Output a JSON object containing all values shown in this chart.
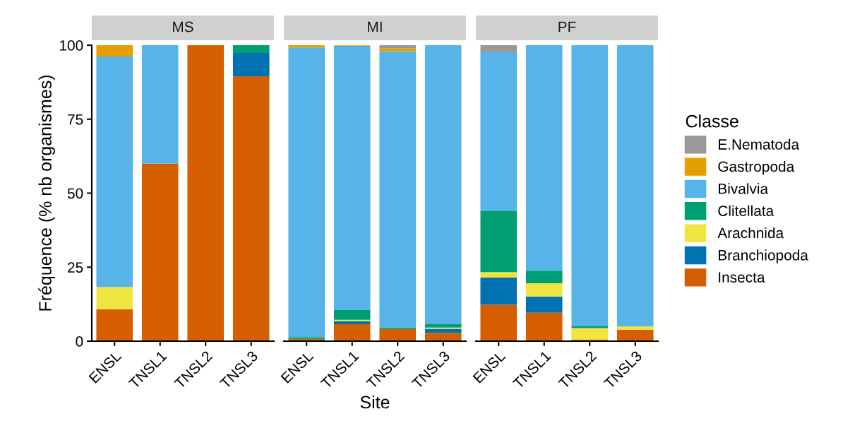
{
  "chart_data": [
    {
      "type": "bar",
      "title": "MS",
      "ylabel": "Fréquence (% nb organismes)",
      "categories": [
        "ENSL",
        "TNSL1",
        "TNSL2",
        "TNSL3"
      ],
      "stacked": true,
      "ylim": [
        0,
        100
      ],
      "yticks": [
        0,
        25,
        50,
        75,
        100
      ],
      "legend": "right",
      "legend_title": "Classe",
      "series": [
        {
          "name": "Insecta",
          "color": "#d55e00",
          "values": [
            10.8,
            60,
            100,
            89.5
          ]
        },
        {
          "name": "Branchiopoda",
          "color": "#0072b2",
          "values": [
            0,
            0,
            0,
            7.9
          ]
        },
        {
          "name": "Arachnida",
          "color": "#f0e442",
          "values": [
            7.5,
            0,
            0,
            0
          ]
        },
        {
          "name": "Clitellata",
          "color": "#009e73",
          "values": [
            0,
            0,
            0,
            2.6
          ]
        },
        {
          "name": "Bivalvia",
          "color": "#56b4e9",
          "values": [
            77.9,
            40,
            0,
            0
          ]
        },
        {
          "name": "Gastropoda",
          "color": "#e69f00",
          "values": [
            3.8,
            0,
            0,
            0
          ]
        },
        {
          "name": "E.Nematoda",
          "color": "#999999",
          "values": [
            0,
            0,
            0,
            0
          ]
        }
      ]
    },
    {
      "type": "bar",
      "title": "MI",
      "xlabel": "Site",
      "categories": [
        "ENSL",
        "TNSL1",
        "TNSL2",
        "TNSL3"
      ],
      "stacked": true,
      "ylim": [
        0,
        100
      ],
      "tick_labels": "x",
      "series": [
        {
          "color": "#d55e00",
          "values": [
            0.8,
            5.7,
            4.1,
            2.8
          ]
        },
        {
          "color": "#0072b2",
          "values": [
            0,
            1.1,
            0,
            1.4
          ]
        },
        {
          "color": "#f0e442",
          "values": [
            0,
            0.4,
            0,
            0.4
          ]
        },
        {
          "color": "#009e73",
          "values": [
            0.6,
            3.3,
            0.5,
            1.1
          ]
        },
        {
          "color": "#56b4e9",
          "values": [
            97.8,
            89.3,
            93.4,
            94.3
          ]
        },
        {
          "color": "#e69f00",
          "values": [
            0.8,
            0.2,
            1.0,
            0
          ]
        },
        {
          "color": "#999999",
          "values": [
            0,
            0,
            1.0,
            0
          ]
        }
      ]
    },
    {
      "type": "bar",
      "title": "PF",
      "categories": [
        "ENSL",
        "TNSL1",
        "TNSL2",
        "TNSL3"
      ],
      "stacked": true,
      "ylim": [
        0,
        100
      ],
      "tick_labels": "x",
      "series": [
        {
          "color": "#d55e00",
          "values": [
            12.3,
            9.6,
            0.5,
            3.9
          ]
        },
        {
          "color": "#0072b2",
          "values": [
            9.2,
            5.5,
            0,
            0
          ]
        },
        {
          "color": "#f0e442",
          "values": [
            1.8,
            4.5,
            3.9,
            1.1
          ]
        },
        {
          "color": "#009e73",
          "values": [
            20.8,
            4.2,
            0.6,
            0
          ]
        },
        {
          "color": "#56b4e9",
          "values": [
            53.5,
            76.2,
            95.0,
            95.0
          ]
        },
        {
          "color": "#e69f00",
          "values": [
            0,
            0,
            0,
            0
          ]
        },
        {
          "color": "#999999",
          "values": [
            2.4,
            0,
            0,
            0
          ]
        }
      ]
    }
  ]
}
